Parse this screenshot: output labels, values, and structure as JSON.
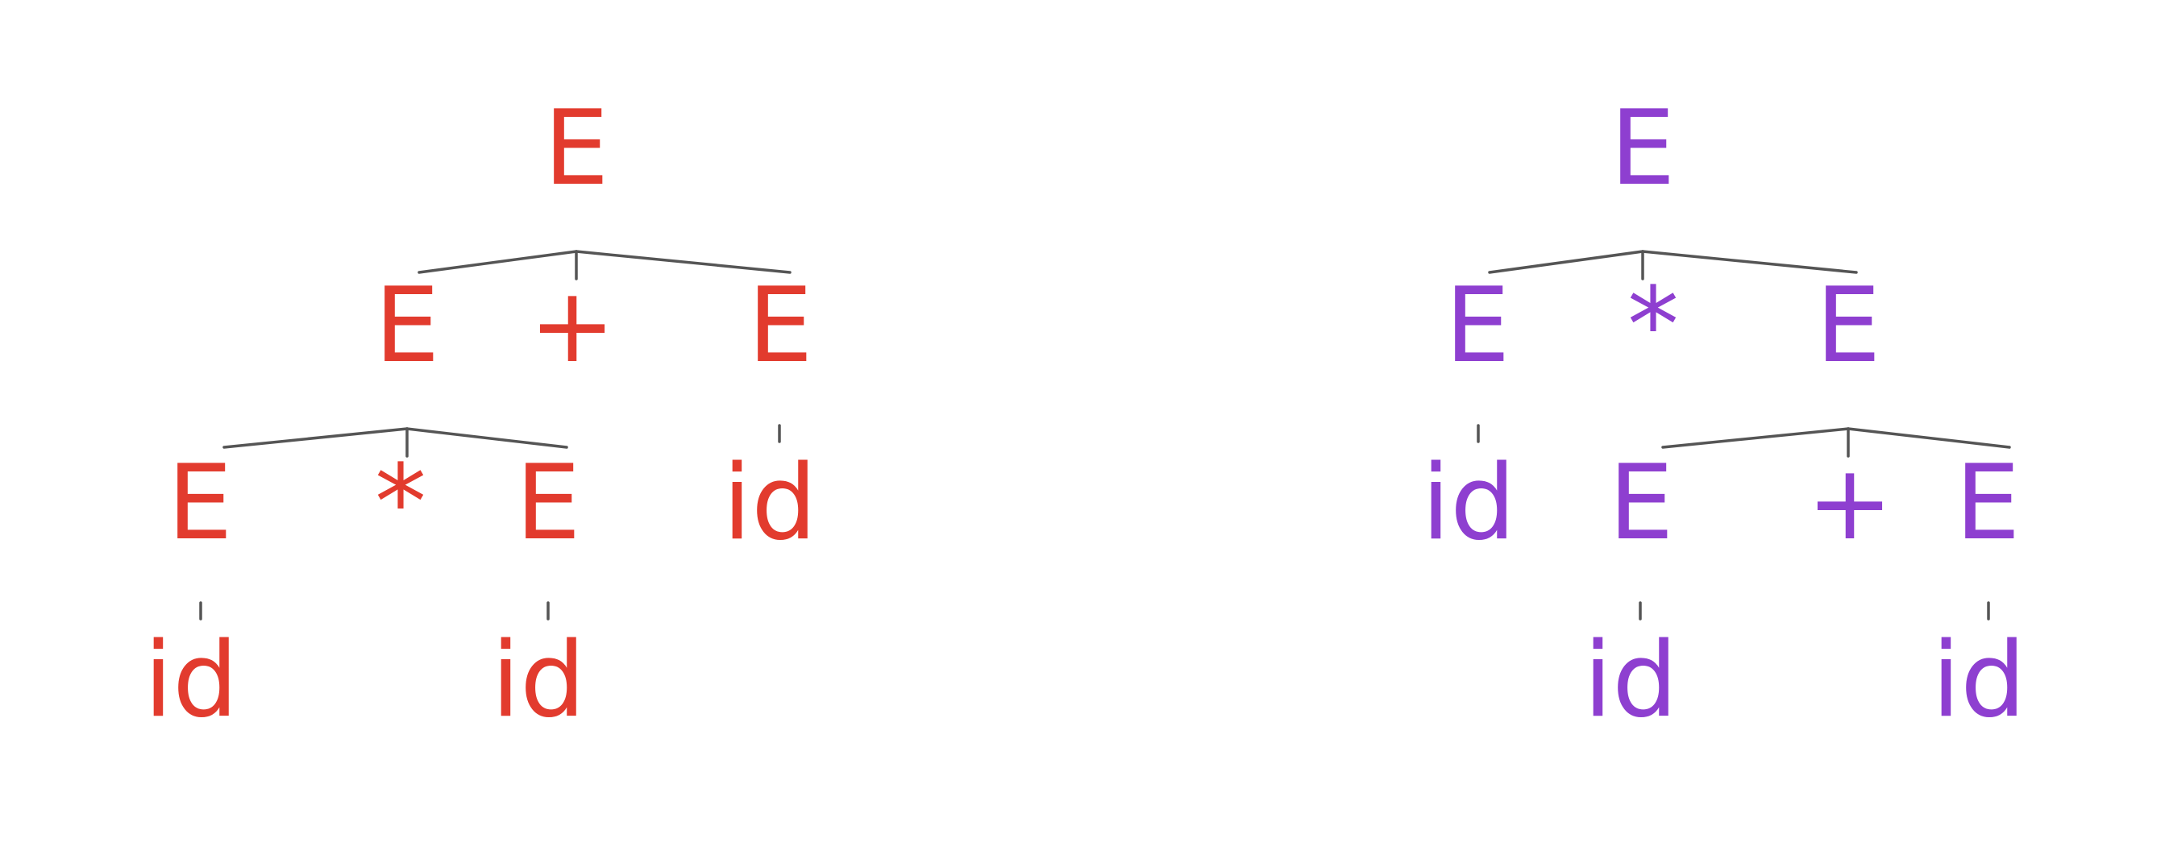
{
  "colors": {
    "left_tree": "#e23b2e",
    "right_tree": "#8e3fd0",
    "edge": "#555555"
  },
  "trees": [
    {
      "id": "left",
      "color": "#e23b2e",
      "nodes": [
        {
          "id": "L0",
          "label": "E"
        },
        {
          "id": "L1",
          "label": "E"
        },
        {
          "id": "L2",
          "label": "+"
        },
        {
          "id": "L3",
          "label": "E"
        },
        {
          "id": "L4",
          "label": "E"
        },
        {
          "id": "L5",
          "label": "*"
        },
        {
          "id": "L6",
          "label": "E"
        },
        {
          "id": "L7",
          "label": "id"
        },
        {
          "id": "L8",
          "label": "id"
        },
        {
          "id": "L9",
          "label": "id"
        }
      ],
      "edges": [
        [
          "L0",
          "L1"
        ],
        [
          "L0",
          "L2"
        ],
        [
          "L0",
          "L3"
        ],
        [
          "L1",
          "L4"
        ],
        [
          "L1",
          "L5"
        ],
        [
          "L1",
          "L6"
        ],
        [
          "L3",
          "L7"
        ],
        [
          "L4",
          "L8"
        ],
        [
          "L6",
          "L9"
        ]
      ]
    },
    {
      "id": "right",
      "color": "#8e3fd0",
      "nodes": [
        {
          "id": "R0",
          "label": "E"
        },
        {
          "id": "R1",
          "label": "E"
        },
        {
          "id": "R2",
          "label": "*"
        },
        {
          "id": "R3",
          "label": "E"
        },
        {
          "id": "R4",
          "label": "id"
        },
        {
          "id": "R5",
          "label": "E"
        },
        {
          "id": "R6",
          "label": "+"
        },
        {
          "id": "R7",
          "label": "E"
        },
        {
          "id": "R8",
          "label": "id"
        },
        {
          "id": "R9",
          "label": "id"
        }
      ],
      "edges": [
        [
          "R0",
          "R1"
        ],
        [
          "R0",
          "R2"
        ],
        [
          "R0",
          "R3"
        ],
        [
          "R1",
          "R4"
        ],
        [
          "R3",
          "R5"
        ],
        [
          "R3",
          "R6"
        ],
        [
          "R3",
          "R7"
        ],
        [
          "R5",
          "R8"
        ],
        [
          "R7",
          "R9"
        ]
      ]
    }
  ]
}
